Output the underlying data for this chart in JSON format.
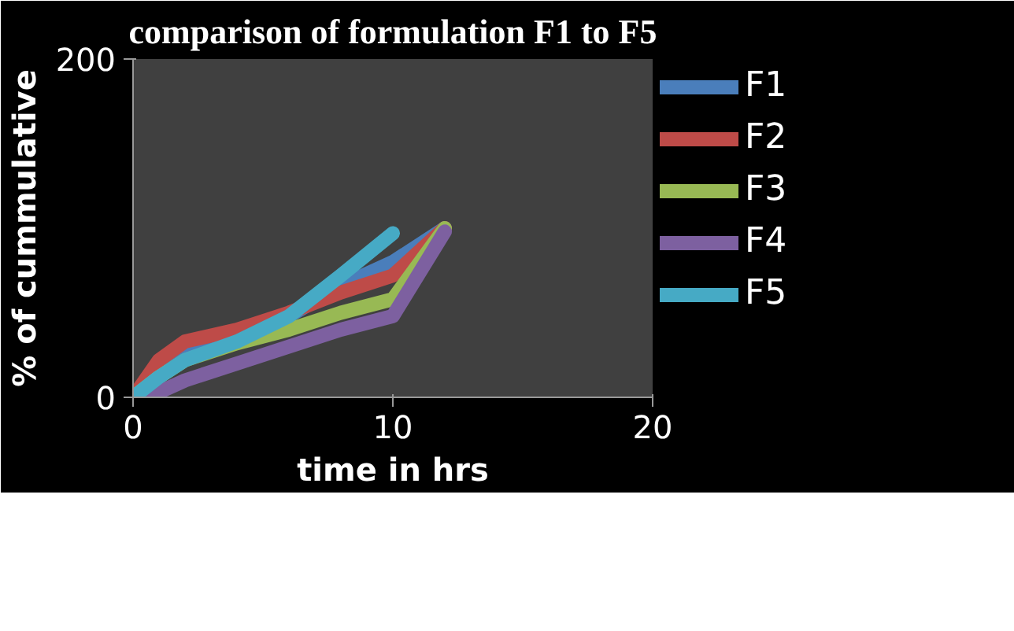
{
  "chart_data": {
    "type": "line",
    "title": "comparison of formulation F1 to F5",
    "xlabel": "time in hrs",
    "ylabel": "% of cummulative",
    "x": [
      0,
      1,
      2,
      4,
      6,
      8,
      10,
      12
    ],
    "series": [
      {
        "name": "F1",
        "color": "#4a7ebb",
        "values": [
          0,
          15,
          25,
          36,
          48,
          66,
          80,
          100
        ]
      },
      {
        "name": "F2",
        "color": "#be4b48",
        "values": [
          0,
          22,
          33,
          40,
          50,
          62,
          72,
          100
        ]
      },
      {
        "name": "F3",
        "color": "#98b954",
        "values": [
          0,
          12,
          22,
          32,
          40,
          50,
          58,
          100
        ]
      },
      {
        "name": "F4",
        "color": "#7d60a0",
        "values": [
          0,
          3,
          10,
          20,
          30,
          40,
          48,
          98
        ]
      },
      {
        "name": "F5",
        "color": "#46aac5",
        "x": [
          0,
          1,
          2,
          4,
          6,
          8,
          10
        ],
        "values": [
          0,
          12,
          22,
          33,
          48,
          72,
          97
        ]
      }
    ],
    "xlim": [
      0,
      20
    ],
    "xticks": [
      0,
      10,
      20
    ],
    "ylim": [
      0,
      200
    ],
    "yticks": [
      0,
      200
    ],
    "grid": false,
    "legend": "right",
    "marker": "none",
    "line_style": "solid"
  }
}
